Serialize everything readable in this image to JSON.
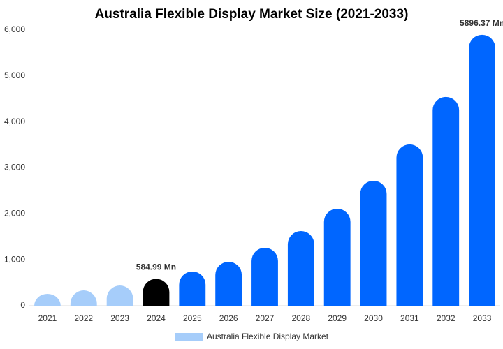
{
  "chart_data": {
    "type": "bar",
    "title": "Australia Flexible Display Market Size (2021-2033)",
    "categories": [
      "2021",
      "2022",
      "2023",
      "2024",
      "2025",
      "2026",
      "2027",
      "2028",
      "2029",
      "2030",
      "2031",
      "2032",
      "2033"
    ],
    "series": [
      {
        "name": "Australia Flexible Display Market",
        "color": "#a6cdfa",
        "values": [
          258,
          334,
          440,
          584.99,
          745,
          957,
          1261,
          1626,
          2112,
          2720,
          3510,
          4544,
          5896.37
        ],
        "value_labels": [
          null,
          null,
          null,
          "584.99 Mn",
          null,
          null,
          null,
          null,
          null,
          null,
          null,
          null,
          "5896.37 Mn"
        ],
        "colors": [
          "#a6cdfa",
          "#a6cdfa",
          "#a6cdfa",
          "#000000",
          "#0066ff",
          "#0066ff",
          "#0066ff",
          "#0066ff",
          "#0066ff",
          "#0066ff",
          "#0066ff",
          "#0066ff",
          "#0066ff"
        ]
      }
    ],
    "ylim": [
      0,
      6000
    ],
    "yticks": [
      0,
      {
        "value": 1000,
        "label": "1,000"
      },
      {
        "value": 2000,
        "label": "2,000"
      },
      {
        "value": 3000,
        "label": "3,000"
      },
      {
        "value": 4000,
        "label": "4,000"
      },
      {
        "value": 5000,
        "label": "5,000"
      },
      {
        "value": 6000,
        "label": "6,000"
      }
    ],
    "grid": false,
    "legend": "bottom"
  }
}
